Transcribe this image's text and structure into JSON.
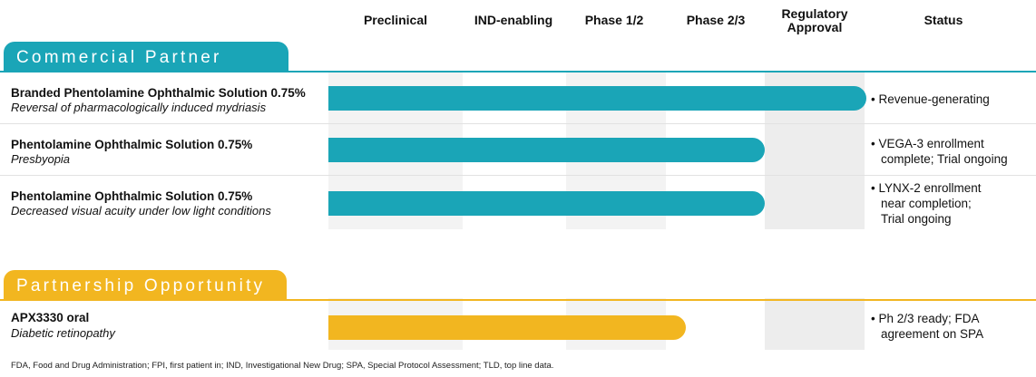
{
  "chart_data": {
    "type": "pipeline",
    "phases": [
      "Preclinical",
      "IND-enabling",
      "Phase 1/2",
      "Phase 2/3",
      "Regulatory Approval",
      "Status"
    ],
    "status_header": "Status",
    "sections": [
      {
        "name": "Commercial Partner",
        "color": "#1aa5b7",
        "programs": [
          {
            "title": "Branded Phentolamine Ophthalmic Solution 0.75%",
            "indication": "Reversal of pharmacologically induced mydriasis",
            "progress": 5.0,
            "status": [
              "• Revenue-generating"
            ]
          },
          {
            "title": "Phentolamine Ophthalmic Solution 0.75%",
            "indication": "Presbyopia",
            "progress": 4.0,
            "status": [
              "• VEGA-3 enrollment complete; Trial ongoing"
            ]
          },
          {
            "title": "Phentolamine Ophthalmic Solution 0.75%",
            "indication": "Decreased visual acuity under low light conditions",
            "progress": 4.0,
            "status": [
              "• LYNX-2 enrollment near completion; Trial ongoing"
            ]
          }
        ]
      },
      {
        "name": "Partnership Opportunity",
        "color": "#f2b620",
        "programs": [
          {
            "title": "APX3330 oral",
            "indication": "Diabetic retinopathy",
            "progress": 3.2,
            "status": [
              "• Ph 2/3 ready; FDA agreement on SPA"
            ]
          }
        ]
      }
    ]
  },
  "footer": "FDA, Food and Drug Administration; FPI, first patient in; IND, Investigational New Drug; SPA, Special Protocol Assessment; TLD, top line data."
}
